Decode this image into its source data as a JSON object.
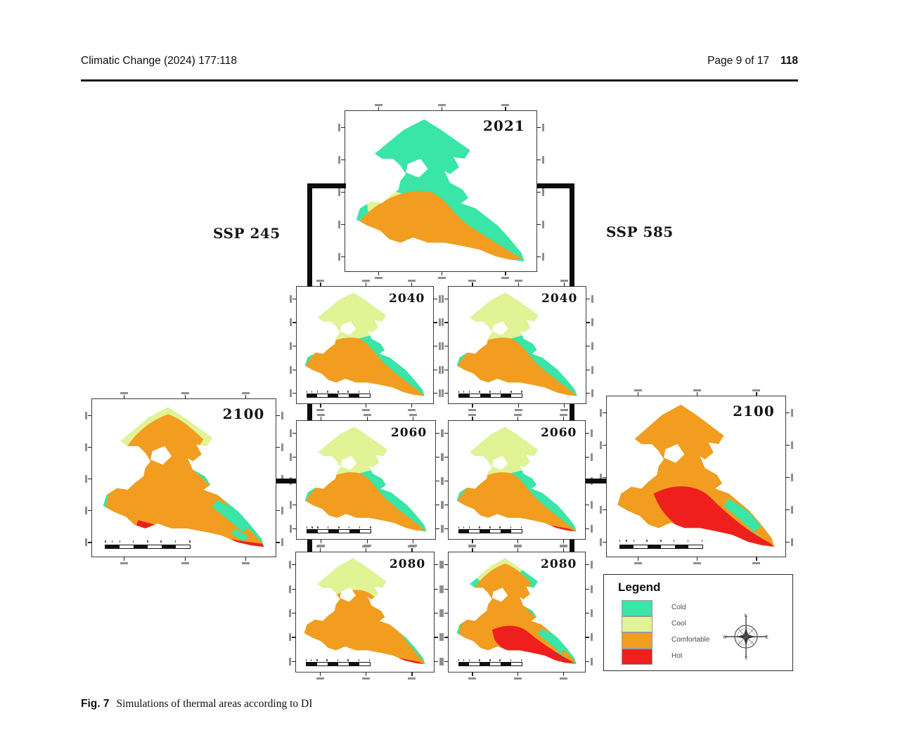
{
  "header": {
    "journal": "Climatic Change (2024) 177:118",
    "page_info": "Page 9 of 17",
    "article_no": "118"
  },
  "figure": {
    "caption_label": "Fig. 7",
    "caption_text": "Simulations of thermal areas according to DI",
    "scenario_left": "SSP 245",
    "scenario_right": "SSP 585",
    "colors": {
      "cold": "#39E5A7",
      "cool": "#E1F394",
      "comfortable": "#F29D1F",
      "hot": "#EE1F1C",
      "connector": "#0c0c0c"
    },
    "legend": {
      "title": "Legend",
      "items": [
        {
          "label": "Cold",
          "color_key": "cold"
        },
        {
          "label": "Cool",
          "color_key": "cool"
        },
        {
          "label": "Comfortable",
          "color_key": "comfortable"
        },
        {
          "label": "Hot",
          "color_key": "hot"
        }
      ],
      "compass": {
        "directions": [
          "N",
          "E",
          "S",
          "W"
        ]
      }
    },
    "panels": [
      {
        "id": "p2021",
        "year": "2021",
        "scenario": "baseline",
        "size": "lg",
        "scalebar": false,
        "base": "cold",
        "zones": [
          [
            "coolWest",
            "cool"
          ],
          [
            "orangeS",
            "comfortable"
          ]
        ]
      },
      {
        "id": "p2040l",
        "year": "2040",
        "scenario": "ssp245",
        "size": "sm",
        "scalebar": true,
        "base": "cold",
        "zones": [
          [
            "coolNorth",
            "cool"
          ],
          [
            "coolWest",
            "cool"
          ],
          [
            "orangeM",
            "comfortable"
          ]
        ]
      },
      {
        "id": "p2040r",
        "year": "2040",
        "scenario": "ssp585",
        "size": "sm",
        "scalebar": true,
        "base": "cold",
        "zones": [
          [
            "coolNorth",
            "cool"
          ],
          [
            "coolWestSmall",
            "cool"
          ],
          [
            "orangeM",
            "comfortable"
          ]
        ]
      },
      {
        "id": "p2060l",
        "year": "2060",
        "scenario": "ssp245",
        "size": "sm",
        "scalebar": true,
        "base": "cold",
        "zones": [
          [
            "coolNorth",
            "cool"
          ],
          [
            "coolWestSmall",
            "cool"
          ],
          [
            "orangeM",
            "comfortable"
          ]
        ]
      },
      {
        "id": "p2060r",
        "year": "2060",
        "scenario": "ssp585",
        "size": "sm",
        "scalebar": true,
        "base": "cold",
        "zones": [
          [
            "coolNorth",
            "cool"
          ],
          [
            "orangeM",
            "comfortable"
          ],
          [
            "redSliver",
            "hot"
          ]
        ]
      },
      {
        "id": "p2080l",
        "year": "2080",
        "scenario": "ssp245",
        "size": "sm",
        "scalebar": true,
        "base": "cold",
        "zones": [
          [
            "coolNorth",
            "cool"
          ],
          [
            "orangeL",
            "comfortable"
          ],
          [
            "redSliver",
            "hot"
          ]
        ]
      },
      {
        "id": "p2080r",
        "year": "2080",
        "scenario": "ssp585",
        "size": "sm",
        "scalebar": true,
        "base": "cold",
        "zones": [
          [
            "coolNorthSmall",
            "cool"
          ],
          [
            "orangeXLn",
            "comfortable"
          ],
          [
            "coldEast",
            "cold"
          ],
          [
            "redBig",
            "hot"
          ]
        ]
      },
      {
        "id": "p2100l",
        "year": "2100",
        "scenario": "ssp245",
        "size": "lg",
        "scalebar": true,
        "base": "cold",
        "zones": [
          [
            "coolNorth",
            "cool"
          ],
          [
            "orangeXLn",
            "comfortable"
          ],
          [
            "coldEast",
            "cold"
          ],
          [
            "redStrip",
            "hot"
          ]
        ]
      },
      {
        "id": "p2100r",
        "year": "2100",
        "scenario": "ssp585",
        "size": "lg",
        "scalebar": true,
        "base": "cold",
        "zones": [
          [
            "orangeFull",
            "comfortable"
          ],
          [
            "coldEast",
            "cold"
          ],
          [
            "redBig2",
            "hot"
          ]
        ]
      }
    ]
  }
}
